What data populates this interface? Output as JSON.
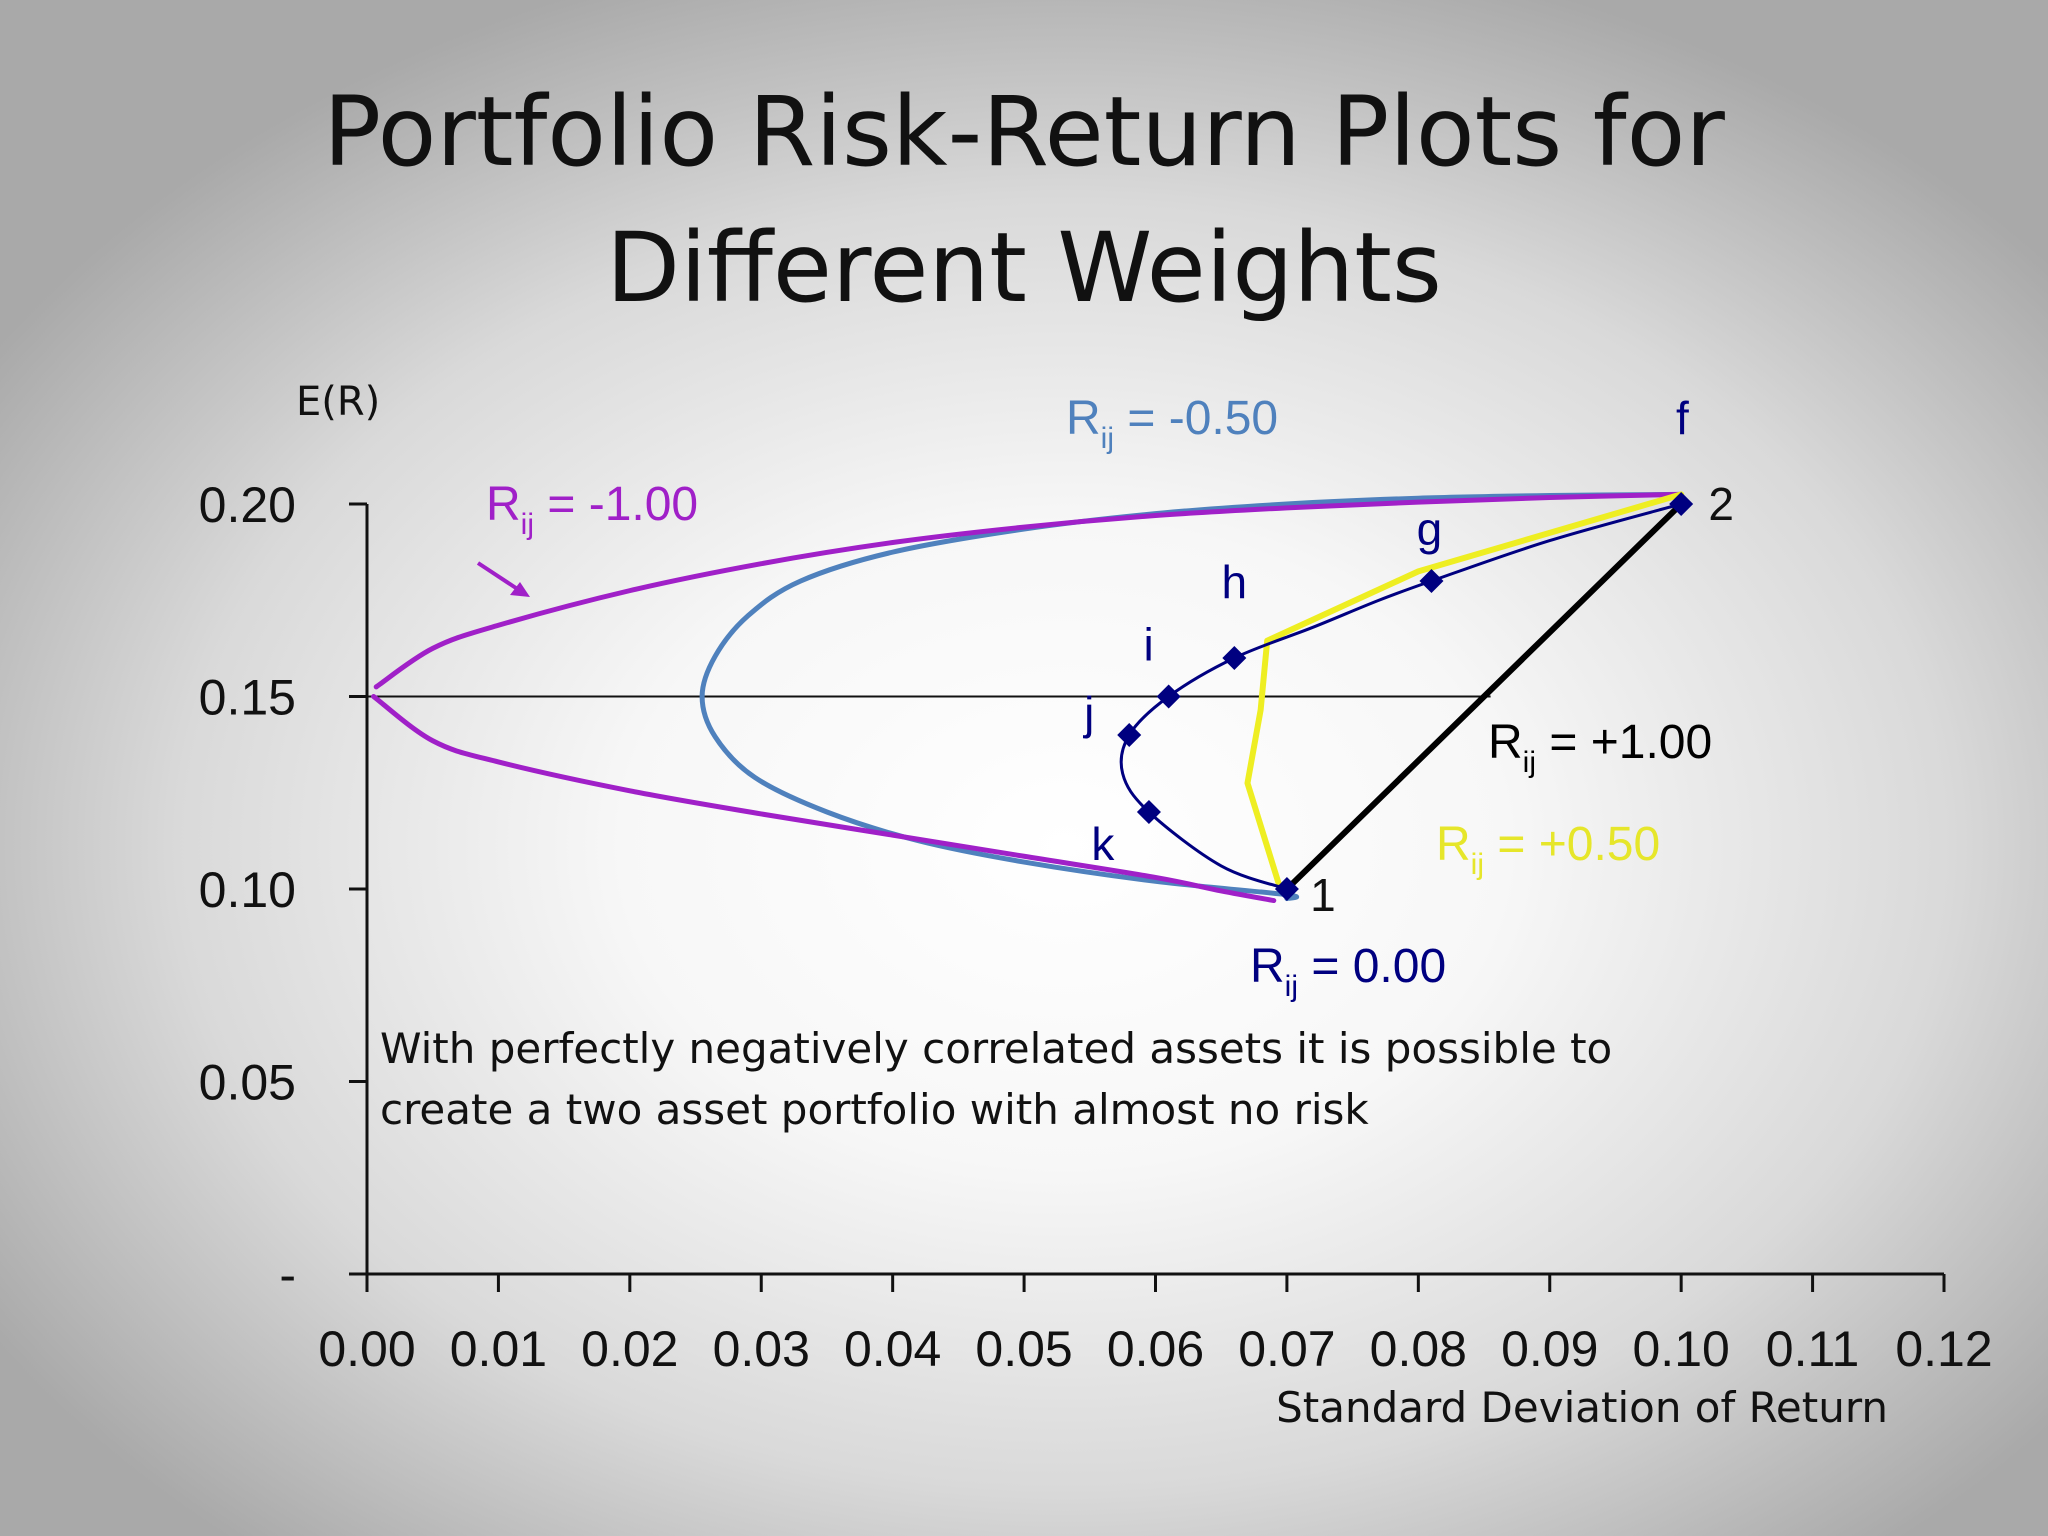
{
  "slide": {
    "title_line1": "Portfolio Risk-Return Plots for",
    "title_line2": "Different Weights"
  },
  "chart_data": {
    "type": "line",
    "ylabel": "E(R)",
    "xlabel": "Standard Deviation of Return",
    "xlim": [
      0,
      0.12
    ],
    "ylim": [
      0,
      0.2
    ],
    "x_ticks": [
      "0.00",
      "0.01",
      "0.02",
      "0.03",
      "0.04",
      "0.05",
      "0.06",
      "0.07",
      "0.08",
      "0.09",
      "0.10",
      "0.11",
      "0.12"
    ],
    "x_tick_values": [
      0,
      0.01,
      0.02,
      0.03,
      0.04,
      0.05,
      0.06,
      0.07,
      0.08,
      0.09,
      0.1,
      0.11,
      0.12
    ],
    "y_ticks": [
      "-",
      "0.05",
      "0.10",
      "0.15",
      "0.20"
    ],
    "y_tick_values": [
      0,
      0.05,
      0.1,
      0.15,
      0.2
    ],
    "reference_line_y": 0.15,
    "series": [
      {
        "label_main": "R",
        "label_sub": "ij",
        "label_rest": " = -1.00",
        "color": "#a020c8",
        "points": [
          [
            0.0007,
            0.1525
          ],
          [
            0.005,
            0.1625
          ],
          [
            0.01,
            0.1685
          ],
          [
            0.02,
            0.1775
          ],
          [
            0.03,
            0.1845
          ],
          [
            0.04,
            0.19
          ],
          [
            0.05,
            0.194
          ],
          [
            0.06,
            0.197
          ],
          [
            0.07,
            0.199
          ],
          [
            0.08,
            0.2005
          ],
          [
            0.09,
            0.2017
          ],
          [
            0.1,
            0.2025
          ],
          [
            0.1,
            0.2025
          ],
          [
            0.1,
            0.2025
          ],
          [
            0.0005,
            0.15
          ],
          [
            0.005,
            0.1385
          ],
          [
            0.01,
            0.133
          ],
          [
            0.02,
            0.1255
          ],
          [
            0.03,
            0.1195
          ],
          [
            0.04,
            0.114
          ],
          [
            0.05,
            0.1085
          ],
          [
            0.06,
            0.103
          ],
          [
            0.065,
            0.0995
          ],
          [
            0.069,
            0.097
          ]
        ],
        "stroke_width": 5
      },
      {
        "label_main": "R",
        "label_sub": "ij",
        "label_rest": " = -0.50",
        "color": "#4f81bd",
        "points": [
          [
            0.1,
            0.2025
          ],
          [
            0.09,
            0.2022
          ],
          [
            0.08,
            0.2015
          ],
          [
            0.07,
            0.2
          ],
          [
            0.06,
            0.1975
          ],
          [
            0.05,
            0.1935
          ],
          [
            0.04,
            0.1875
          ],
          [
            0.033,
            0.18
          ],
          [
            0.029,
            0.171
          ],
          [
            0.0265,
            0.1605
          ],
          [
            0.0255,
            0.15
          ],
          [
            0.0265,
            0.1395
          ],
          [
            0.0295,
            0.129
          ],
          [
            0.035,
            0.12
          ],
          [
            0.042,
            0.1125
          ],
          [
            0.05,
            0.107
          ],
          [
            0.06,
            0.102
          ],
          [
            0.07,
            0.0985
          ],
          [
            0.07,
            0.0975
          ]
        ],
        "stroke_width": 5
      },
      {
        "label_main": "R",
        "label_sub": "ij",
        "label_rest": " = 0.00",
        "color": "#000080",
        "points": [
          [
            0.07,
            0.1
          ],
          [
            0.065,
            0.106
          ],
          [
            0.0595,
            0.12
          ],
          [
            0.0575,
            0.13
          ],
          [
            0.058,
            0.14
          ],
          [
            0.061,
            0.15
          ],
          [
            0.066,
            0.16
          ],
          [
            0.072,
            0.168
          ],
          [
            0.077,
            0.175
          ],
          [
            0.081,
            0.18
          ],
          [
            0.09,
            0.1905
          ],
          [
            0.1,
            0.2
          ]
        ],
        "markers": [
          {
            "x": 0.07,
            "y": 0.1,
            "label": "1"
          },
          {
            "x": 0.0595,
            "y": 0.12,
            "label": "k"
          },
          {
            "x": 0.058,
            "y": 0.14,
            "label": "j"
          },
          {
            "x": 0.061,
            "y": 0.15,
            "label": "i"
          },
          {
            "x": 0.066,
            "y": 0.16,
            "label": "h"
          },
          {
            "x": 0.081,
            "y": 0.18,
            "label": "g"
          },
          {
            "x": 0.1,
            "y": 0.2,
            "label": "2"
          }
        ],
        "stroke_width": 3
      },
      {
        "label_main": "R",
        "label_sub": "ij",
        "label_rest": " = +0.50",
        "color": "#eeee22",
        "points": [
          [
            0.1,
            0.2025
          ],
          [
            0.08,
            0.1825
          ],
          [
            0.0685,
            0.1645
          ],
          [
            0.068,
            0.1465
          ],
          [
            0.067,
            0.1275
          ],
          [
            0.0695,
            0.1
          ]
        ],
        "stroke_width": 6
      },
      {
        "label_main": "R",
        "label_sub": "ij",
        "label_rest": " = +1.00",
        "color": "#000000",
        "points": [
          [
            0.07,
            0.1
          ],
          [
            0.1,
            0.2
          ]
        ],
        "stroke_width": 6
      }
    ],
    "extra_label_f": "f",
    "note_line1": "With perfectly negatively correlated assets it is possible to",
    "note_line2": "create a two asset portfolio with almost no risk"
  }
}
